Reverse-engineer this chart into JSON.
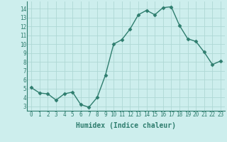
{
  "x": [
    0,
    1,
    2,
    3,
    4,
    5,
    6,
    7,
    8,
    9,
    10,
    11,
    12,
    13,
    14,
    15,
    16,
    17,
    18,
    19,
    20,
    21,
    22,
    23
  ],
  "y": [
    5.1,
    4.5,
    4.4,
    3.7,
    4.4,
    4.6,
    3.2,
    2.9,
    4.0,
    6.5,
    10.0,
    10.5,
    11.7,
    13.3,
    13.8,
    13.3,
    14.1,
    14.2,
    12.1,
    10.6,
    10.3,
    9.1,
    7.7,
    8.1
  ],
  "line_color": "#2e7d6e",
  "marker": "D",
  "markersize": 2.5,
  "linewidth": 1.0,
  "bg_color": "#cdeeed",
  "grid_color": "#aed8d5",
  "xlabel": "Humidex (Indice chaleur)",
  "xlabel_fontsize": 7,
  "tick_fontsize": 5.5,
  "ylim": [
    2.5,
    14.8
  ],
  "xlim": [
    -0.5,
    23.5
  ],
  "yticks": [
    3,
    4,
    5,
    6,
    7,
    8,
    9,
    10,
    11,
    12,
    13,
    14
  ],
  "xticks": [
    0,
    1,
    2,
    3,
    4,
    5,
    6,
    7,
    8,
    9,
    10,
    11,
    12,
    13,
    14,
    15,
    16,
    17,
    18,
    19,
    20,
    21,
    22,
    23
  ],
  "tick_color": "#2e7d6e",
  "label_color": "#2e7d6e",
  "spine_color": "#2e7d6e"
}
